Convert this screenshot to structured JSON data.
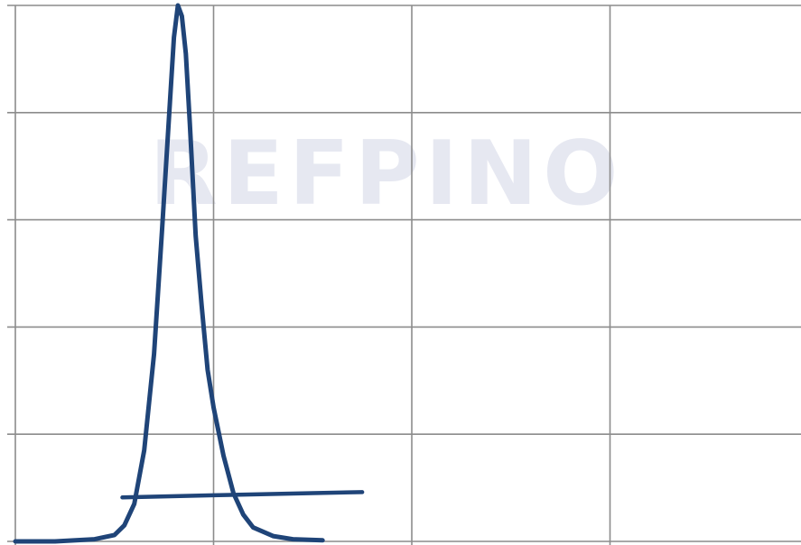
{
  "chart_data": {
    "type": "line",
    "title": "",
    "xlabel": "",
    "ylabel": "",
    "xlim": [
      0,
      4
    ],
    "ylim": [
      0,
      5
    ],
    "x_gridlines": [
      0,
      1,
      2,
      3,
      4
    ],
    "y_gridlines": [
      0,
      1,
      2,
      3,
      4,
      5
    ],
    "grid": true,
    "legend": "none",
    "watermark_text": "REFPINO",
    "colors": {
      "line": "#1f4478",
      "grid": "#8c8c8c",
      "watermark": "#e6e8f1",
      "background": "#ffffff"
    },
    "series": [
      {
        "x": [
          0,
          0.2,
          0.4,
          0.5,
          0.55,
          0.6,
          0.65,
          0.7,
          0.74,
          0.78,
          0.8,
          0.82,
          0.84,
          0.86,
          0.88,
          0.91,
          0.94,
          0.97,
          1.0,
          1.05,
          1.1,
          1.15,
          1.2,
          1.3,
          1.4,
          1.55
        ],
        "y": [
          0,
          0.0,
          0.02,
          0.06,
          0.15,
          0.35,
          0.85,
          1.75,
          2.9,
          4.1,
          4.7,
          5.0,
          4.9,
          4.55,
          3.9,
          2.85,
          2.2,
          1.6,
          1.25,
          0.8,
          0.45,
          0.25,
          0.13,
          0.05,
          0.02,
          0.01
        ]
      },
      {
        "x": [
          0.54,
          1.0,
          1.5,
          1.75
        ],
        "y": [
          0.41,
          0.43,
          0.45,
          0.46
        ]
      }
    ]
  }
}
